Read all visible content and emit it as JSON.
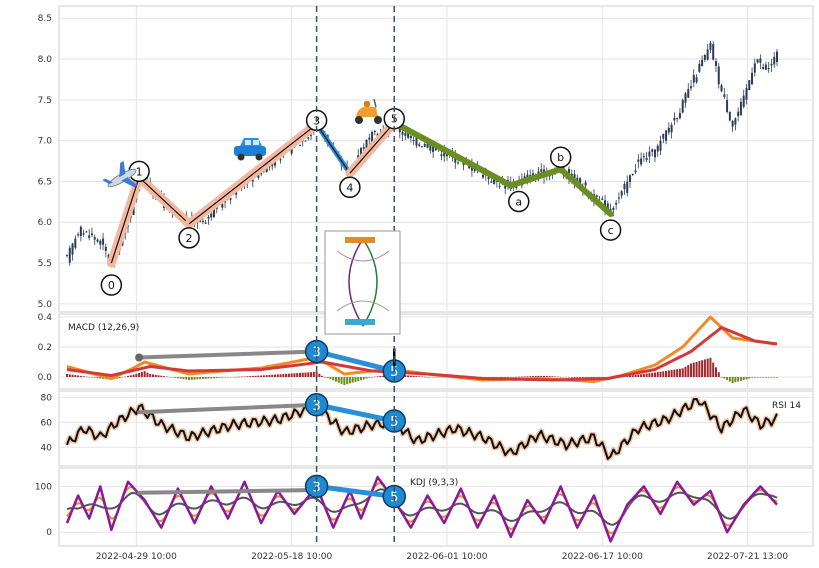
{
  "chart_data": [
    {
      "type": "candlestick",
      "panel": "price",
      "title": "",
      "ylim": [
        4.9,
        8.65
      ],
      "yticks": [
        5.0,
        5.5,
        6.0,
        6.5,
        7.0,
        7.5,
        8.0,
        8.5
      ],
      "ytick_labels": [
        "5.0",
        "5.5",
        "6.0",
        "6.5",
        "7.0",
        "7.5",
        "8.0",
        "8.5"
      ],
      "x_tick_labels": [
        "2022-04-29 10:00",
        "2022-05-18 10:00",
        "2022-06-01 10:00",
        "2022-06-17 10:00",
        "2022-07-21 13:00"
      ],
      "close_path": [
        [
          0,
          5.55
        ],
        [
          4,
          5.9
        ],
        [
          8,
          5.85
        ],
        [
          12,
          5.75
        ],
        [
          16,
          5.5
        ],
        [
          22,
          6.0
        ],
        [
          26,
          6.55
        ],
        [
          32,
          6.35
        ],
        [
          38,
          6.1
        ],
        [
          44,
          6.0
        ],
        [
          50,
          6.05
        ],
        [
          56,
          6.25
        ],
        [
          62,
          6.45
        ],
        [
          68,
          6.6
        ],
        [
          74,
          6.75
        ],
        [
          80,
          6.9
        ],
        [
          86,
          7.05
        ],
        [
          90,
          7.2
        ],
        [
          94,
          7.0
        ],
        [
          98,
          6.75
        ],
        [
          102,
          6.6
        ],
        [
          106,
          6.9
        ],
        [
          110,
          7.05
        ],
        [
          114,
          7.1
        ],
        [
          118,
          7.2
        ],
        [
          124,
          7.0
        ],
        [
          130,
          6.95
        ],
        [
          136,
          6.85
        ],
        [
          142,
          6.75
        ],
        [
          148,
          6.65
        ],
        [
          154,
          6.5
        ],
        [
          160,
          6.45
        ],
        [
          166,
          6.55
        ],
        [
          172,
          6.6
        ],
        [
          178,
          6.65
        ],
        [
          184,
          6.5
        ],
        [
          190,
          6.3
        ],
        [
          196,
          6.15
        ],
        [
          200,
          6.35
        ],
        [
          206,
          6.75
        ],
        [
          212,
          6.85
        ],
        [
          216,
          7.1
        ],
        [
          222,
          7.45
        ],
        [
          228,
          7.9
        ],
        [
          232,
          8.15
        ],
        [
          236,
          7.6
        ],
        [
          240,
          7.2
        ],
        [
          244,
          7.5
        ],
        [
          248,
          8.0
        ],
        [
          252,
          7.85
        ],
        [
          256,
          8.05
        ]
      ],
      "wave_points": [
        {
          "label": "0",
          "i": 16,
          "v": 5.5
        },
        {
          "label": "1",
          "i": 26,
          "v": 6.55
        },
        {
          "label": "2",
          "i": 44,
          "v": 5.98
        },
        {
          "label": "3",
          "i": 90,
          "v": 7.2
        },
        {
          "label": "4",
          "i": 102,
          "v": 6.6
        },
        {
          "label": "5",
          "i": 118,
          "v": 7.22
        }
      ],
      "corrective_points": [
        {
          "label": "a",
          "i": 160,
          "v": 6.45
        },
        {
          "label": "b",
          "i": 178,
          "v": 6.65
        },
        {
          "label": "c",
          "i": 196,
          "v": 6.1
        }
      ],
      "vertical_markers": [
        90,
        118
      ]
    },
    {
      "type": "line",
      "panel": "macd",
      "label": "MACD (12,26,9)",
      "ylim": [
        -0.08,
        0.42
      ],
      "yticks": [
        0.0,
        0.2,
        0.4
      ],
      "ytick_labels": [
        "0.0",
        "0.2",
        "0.4"
      ],
      "macd_path": [
        [
          0,
          0.07
        ],
        [
          10,
          0.02
        ],
        [
          16,
          -0.01
        ],
        [
          24,
          0.06
        ],
        [
          28,
          0.1
        ],
        [
          36,
          0.06
        ],
        [
          44,
          0.02
        ],
        [
          56,
          0.04
        ],
        [
          70,
          0.06
        ],
        [
          90,
          0.13
        ],
        [
          100,
          0.02
        ],
        [
          110,
          0.04
        ],
        [
          118,
          0.05
        ],
        [
          130,
          0.02
        ],
        [
          150,
          -0.02
        ],
        [
          170,
          -0.01
        ],
        [
          190,
          -0.03
        ],
        [
          200,
          0.01
        ],
        [
          212,
          0.08
        ],
        [
          222,
          0.2
        ],
        [
          232,
          0.4
        ],
        [
          240,
          0.26
        ],
        [
          248,
          0.24
        ],
        [
          256,
          0.22
        ]
      ],
      "signal_path": [
        [
          0,
          0.05
        ],
        [
          16,
          0.01
        ],
        [
          30,
          0.07
        ],
        [
          44,
          0.04
        ],
        [
          70,
          0.05
        ],
        [
          92,
          0.1
        ],
        [
          110,
          0.04
        ],
        [
          130,
          0.02
        ],
        [
          150,
          -0.01
        ],
        [
          175,
          -0.02
        ],
        [
          195,
          -0.01
        ],
        [
          212,
          0.05
        ],
        [
          225,
          0.17
        ],
        [
          236,
          0.33
        ],
        [
          248,
          0.24
        ],
        [
          256,
          0.22
        ]
      ],
      "divergence": [
        [
          26,
          0.13
        ],
        [
          90,
          0.17
        ]
      ],
      "wave_labels": [
        {
          "label": "3",
          "i": 90,
          "v": 0.17
        },
        {
          "label": "5",
          "i": 118,
          "v": 0.04
        }
      ]
    },
    {
      "type": "line",
      "panel": "rsi",
      "label": "RSI 14",
      "ylim": [
        25,
        85
      ],
      "yticks": [
        40,
        60,
        80
      ],
      "ytick_labels": [
        "40",
        "60",
        "80"
      ],
      "rsi_path": [
        [
          0,
          42
        ],
        [
          6,
          55
        ],
        [
          12,
          48
        ],
        [
          18,
          60
        ],
        [
          26,
          72
        ],
        [
          34,
          58
        ],
        [
          44,
          48
        ],
        [
          60,
          58
        ],
        [
          76,
          62
        ],
        [
          90,
          73
        ],
        [
          100,
          52
        ],
        [
          110,
          58
        ],
        [
          118,
          60
        ],
        [
          126,
          45
        ],
        [
          140,
          55
        ],
        [
          150,
          48
        ],
        [
          160,
          35
        ],
        [
          170,
          50
        ],
        [
          180,
          42
        ],
        [
          190,
          48
        ],
        [
          196,
          32
        ],
        [
          206,
          55
        ],
        [
          216,
          62
        ],
        [
          228,
          78
        ],
        [
          236,
          55
        ],
        [
          244,
          70
        ],
        [
          250,
          58
        ],
        [
          256,
          63
        ]
      ],
      "divergence": [
        [
          26,
          68
        ],
        [
          90,
          74
        ]
      ],
      "wave_labels": [
        {
          "label": "3",
          "i": 90,
          "v": 74
        },
        {
          "label": "5",
          "i": 118,
          "v": 61
        }
      ]
    },
    {
      "type": "line",
      "panel": "kdj",
      "label": "KDJ (9,3,3)",
      "ylim": [
        -30,
        140
      ],
      "yticks": [
        0,
        100
      ],
      "ytick_labels": [
        "0",
        "100"
      ],
      "j_path": [
        [
          0,
          20
        ],
        [
          4,
          80
        ],
        [
          8,
          30
        ],
        [
          12,
          100
        ],
        [
          16,
          5
        ],
        [
          22,
          110
        ],
        [
          28,
          70
        ],
        [
          34,
          10
        ],
        [
          40,
          95
        ],
        [
          46,
          20
        ],
        [
          52,
          100
        ],
        [
          58,
          30
        ],
        [
          64,
          110
        ],
        [
          70,
          20
        ],
        [
          76,
          90
        ],
        [
          82,
          40
        ],
        [
          90,
          100
        ],
        [
          96,
          10
        ],
        [
          102,
          90
        ],
        [
          106,
          30
        ],
        [
          112,
          120
        ],
        [
          118,
          70
        ],
        [
          124,
          10
        ],
        [
          130,
          80
        ],
        [
          136,
          20
        ],
        [
          142,
          95
        ],
        [
          148,
          10
        ],
        [
          154,
          80
        ],
        [
          160,
          -10
        ],
        [
          166,
          70
        ],
        [
          172,
          20
        ],
        [
          178,
          100
        ],
        [
          184,
          10
        ],
        [
          190,
          80
        ],
        [
          196,
          -20
        ],
        [
          202,
          60
        ],
        [
          208,
          100
        ],
        [
          214,
          40
        ],
        [
          220,
          110
        ],
        [
          226,
          60
        ],
        [
          232,
          90
        ],
        [
          238,
          0
        ],
        [
          244,
          60
        ],
        [
          250,
          100
        ],
        [
          256,
          60
        ]
      ],
      "divergence": [
        [
          26,
          86
        ],
        [
          90,
          92
        ]
      ],
      "wave_labels": [
        {
          "label": "3",
          "i": 90,
          "v": 100
        },
        {
          "label": "5",
          "i": 118,
          "v": 78
        }
      ]
    }
  ],
  "annotations": {
    "label_macd": "MACD (12,26,9)",
    "label_rsi": "RSI 14",
    "label_kdj": "KDJ (9,3,3)"
  }
}
